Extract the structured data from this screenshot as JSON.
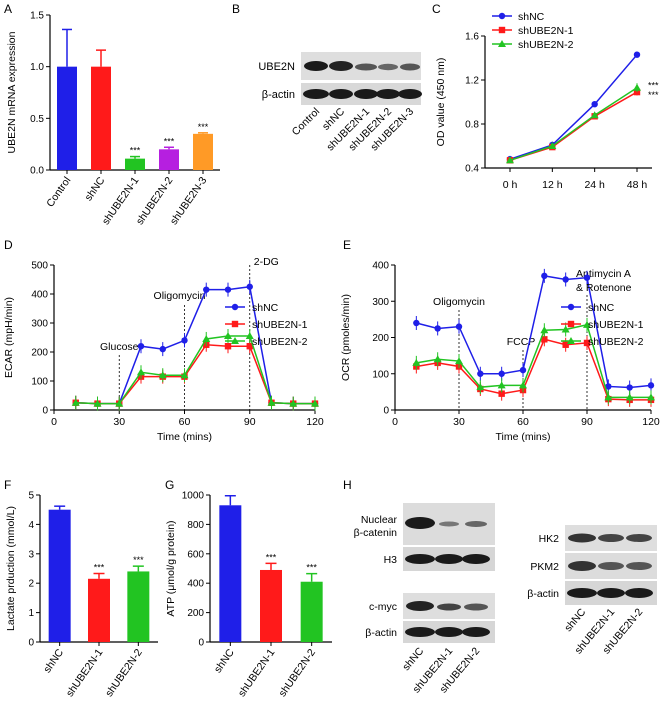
{
  "panel_labels": {
    "A": "A",
    "B": "B",
    "C": "C",
    "D": "D",
    "E": "E",
    "F": "F",
    "G": "G",
    "H": "H"
  },
  "colors": {
    "blue": "#1f1fe8",
    "red": "#ff1a1a",
    "green": "#22c422",
    "purple": "#b61fe0",
    "orange": "#ff9a26"
  },
  "chart_data": [
    {
      "id": "A",
      "type": "bar",
      "ylabel": "UBE2N mRNA expression",
      "ylim": [
        0,
        1.5
      ],
      "yticks": [
        "0.0",
        "0.5",
        "1.0",
        "1.5"
      ],
      "categories": [
        "Control",
        "shNC",
        "shUBE2N-1",
        "shUBE2N-2",
        "shUBE2N-3"
      ],
      "values": [
        1.0,
        1.0,
        0.11,
        0.2,
        0.35
      ],
      "errors": [
        0.36,
        0.16,
        0.02,
        0.02,
        0.01
      ],
      "significance": [
        "",
        "",
        "***",
        "***",
        "***"
      ],
      "colors": [
        "#1f1fe8",
        "#ff1a1a",
        "#22c422",
        "#b61fe0",
        "#ff9a26"
      ]
    },
    {
      "id": "C",
      "type": "line",
      "ylabel": "OD value (450 nm)",
      "ylim": [
        0.4,
        1.6
      ],
      "yticks": [
        "0.4",
        "0.8",
        "1.2",
        "1.6"
      ],
      "x": [
        "0 h",
        "12 h",
        "24 h",
        "48 h"
      ],
      "series": [
        {
          "name": "shNC",
          "values": [
            0.48,
            0.61,
            0.98,
            1.43
          ],
          "errors": [
            0.03,
            0.03,
            0.02,
            0.01
          ],
          "color": "#1f1fe8",
          "marker": "circle"
        },
        {
          "name": "shUBE2N-1",
          "values": [
            0.47,
            0.59,
            0.87,
            1.09
          ],
          "errors": [
            0.02,
            0.02,
            0.02,
            0.03
          ],
          "color": "#ff1a1a",
          "marker": "square"
        },
        {
          "name": "shUBE2N-2",
          "values": [
            0.47,
            0.6,
            0.88,
            1.13
          ],
          "errors": [
            0.02,
            0.02,
            0.02,
            0.04
          ],
          "color": "#22c422",
          "marker": "triangle"
        }
      ],
      "annotations": [
        "***",
        "***"
      ]
    },
    {
      "id": "D",
      "type": "line",
      "ylabel": "ECAR (mpH/min)",
      "xlabel": "Time (mins)",
      "xlim": [
        0,
        120
      ],
      "ylim": [
        0,
        500
      ],
      "xticks": [
        "0",
        "30",
        "60",
        "90",
        "120"
      ],
      "yticks": [
        "0",
        "100",
        "200",
        "300",
        "400",
        "500"
      ],
      "x": [
        10,
        20,
        30,
        40,
        50,
        60,
        70,
        80,
        90,
        100,
        110,
        120
      ],
      "series": [
        {
          "name": "shNC",
          "values": [
            25,
            22,
            22,
            220,
            210,
            240,
            415,
            415,
            425,
            25,
            22,
            22
          ],
          "color": "#1f1fe8",
          "marker": "circle"
        },
        {
          "name": "shUBE2N-1",
          "values": [
            25,
            22,
            22,
            115,
            115,
            115,
            225,
            220,
            220,
            25,
            22,
            22
          ],
          "color": "#ff1a1a",
          "marker": "square"
        },
        {
          "name": "shUBE2N-2",
          "values": [
            25,
            22,
            22,
            130,
            120,
            120,
            245,
            255,
            255,
            25,
            22,
            22
          ],
          "color": "#22c422",
          "marker": "triangle"
        }
      ],
      "events": [
        {
          "x": 30,
          "label": "Glucose"
        },
        {
          "x": 60,
          "label": "Oligomycin"
        },
        {
          "x": 90,
          "label": "2-DG"
        }
      ]
    },
    {
      "id": "E",
      "type": "line",
      "ylabel": "OCR (pmoles/min)",
      "xlabel": "Time (mins)",
      "xlim": [
        0,
        120
      ],
      "ylim": [
        0,
        400
      ],
      "xticks": [
        "0",
        "30",
        "60",
        "90",
        "120"
      ],
      "yticks": [
        "0",
        "100",
        "200",
        "300",
        "400"
      ],
      "x": [
        10,
        20,
        30,
        40,
        50,
        60,
        70,
        80,
        90,
        100,
        110,
        120
      ],
      "series": [
        {
          "name": "shNC",
          "values": [
            240,
            225,
            230,
            100,
            100,
            110,
            370,
            360,
            365,
            65,
            62,
            68
          ],
          "color": "#1f1fe8",
          "marker": "circle"
        },
        {
          "name": "shUBE2N-1",
          "values": [
            120,
            130,
            120,
            58,
            45,
            55,
            195,
            180,
            185,
            30,
            28,
            28
          ],
          "color": "#ff1a1a",
          "marker": "square"
        },
        {
          "name": "shUBE2N-2",
          "values": [
            130,
            140,
            135,
            63,
            68,
            68,
            220,
            222,
            235,
            35,
            35,
            35
          ],
          "color": "#22c422",
          "marker": "triangle"
        }
      ],
      "events": [
        {
          "x": 30,
          "label": "Oligomycin"
        },
        {
          "x": 60,
          "label": "FCCP"
        },
        {
          "x": 90,
          "label": "Antimycin A"
        }
      ],
      "event_extra": "& Rotenone"
    },
    {
      "id": "F",
      "type": "bar",
      "ylabel": "Lactate prduction (mmol/L)",
      "ylim": [
        0,
        5
      ],
      "yticks": [
        "0",
        "1",
        "2",
        "3",
        "4",
        "5"
      ],
      "categories": [
        "shNC",
        "shUBE2N-1",
        "shUBE2N-2"
      ],
      "values": [
        4.5,
        2.15,
        2.4
      ],
      "errors": [
        0.12,
        0.18,
        0.18
      ],
      "significance": [
        "",
        "***",
        "***"
      ],
      "colors": [
        "#1f1fe8",
        "#ff1a1a",
        "#22c422"
      ]
    },
    {
      "id": "G",
      "type": "bar",
      "ylabel": "ATP (μmol/g protein)",
      "ylim": [
        0,
        1000
      ],
      "yticks": [
        "0",
        "200",
        "400",
        "600",
        "800",
        "1000"
      ],
      "categories": [
        "shNC",
        "shUBE2N-1",
        "shUBE2N-2"
      ],
      "values": [
        930,
        490,
        410
      ],
      "errors": [
        65,
        45,
        55
      ],
      "significance": [
        "",
        "***",
        "***"
      ],
      "colors": [
        "#1f1fe8",
        "#ff1a1a",
        "#22c422"
      ]
    }
  ],
  "blot_B": {
    "rows": [
      "UBE2N",
      "β-actin"
    ],
    "lanes": [
      "Control",
      "shNC",
      "shUBE2N-1",
      "shUBE2N-2",
      "shUBE2N-3"
    ]
  },
  "blot_H_left": {
    "rows": [
      "Nuclear",
      "β-catenin",
      "H3",
      "c-myc",
      "β-actin"
    ],
    "lanes": [
      "shNC",
      "shUBE2N-1",
      "shUBE2N-2"
    ]
  },
  "blot_H_right": {
    "rows": [
      "HK2",
      "PKM2",
      "β-actin"
    ],
    "lanes": [
      "shNC",
      "shUBE2N-1",
      "shUBE2N-2"
    ]
  }
}
